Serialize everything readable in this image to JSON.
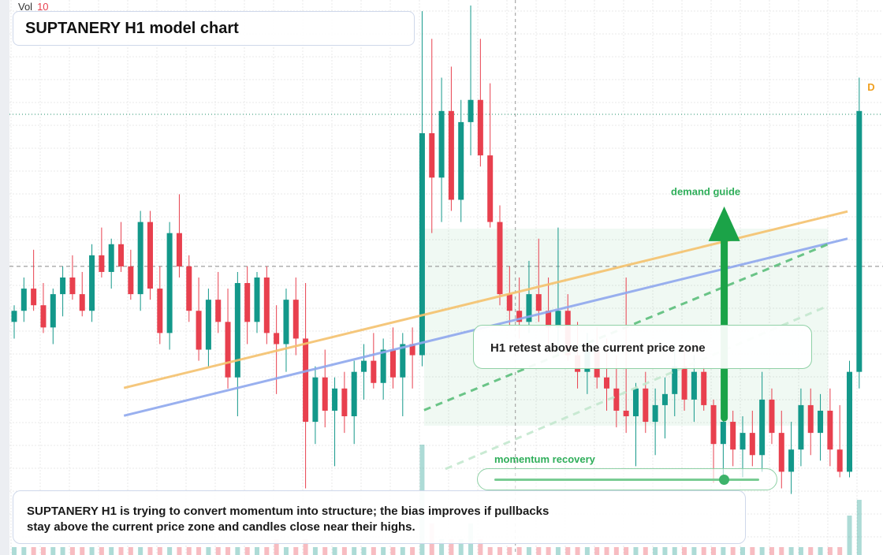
{
  "header": {
    "vol_label": "Vol",
    "vol_value": 10,
    "title": "SUPTANERY H1 model chart",
    "badge": "D"
  },
  "chart_data": {
    "type": "candlestick",
    "up_color": "#13988a",
    "down_color": "#e8404e",
    "ylim": [
      0,
      100
    ],
    "volume_ylim": [
      0,
      20
    ],
    "candles": [
      {
        "open": 42,
        "high": 45,
        "low": 39,
        "close": 44
      },
      {
        "open": 44,
        "high": 50,
        "low": 42,
        "close": 48
      },
      {
        "open": 48,
        "high": 55,
        "low": 44,
        "close": 45
      },
      {
        "open": 45,
        "high": 49,
        "low": 40,
        "close": 41
      },
      {
        "open": 41,
        "high": 48,
        "low": 38,
        "close": 47
      },
      {
        "open": 47,
        "high": 52,
        "low": 43,
        "close": 50
      },
      {
        "open": 50,
        "high": 54,
        "low": 46,
        "close": 47
      },
      {
        "open": 47,
        "high": 51,
        "low": 43,
        "close": 44
      },
      {
        "open": 44,
        "high": 56,
        "low": 42,
        "close": 54
      },
      {
        "open": 54,
        "high": 59,
        "low": 50,
        "close": 51
      },
      {
        "open": 51,
        "high": 57,
        "low": 48,
        "close": 56
      },
      {
        "open": 56,
        "high": 60,
        "low": 51,
        "close": 52
      },
      {
        "open": 52,
        "high": 55,
        "low": 46,
        "close": 47
      },
      {
        "open": 47,
        "high": 62,
        "low": 44,
        "close": 60
      },
      {
        "open": 60,
        "high": 62,
        "low": 46,
        "close": 48
      },
      {
        "open": 48,
        "high": 52,
        "low": 38,
        "close": 40
      },
      {
        "open": 40,
        "high": 60,
        "low": 37,
        "close": 58
      },
      {
        "open": 58,
        "high": 65,
        "low": 50,
        "close": 52
      },
      {
        "open": 52,
        "high": 54,
        "low": 42,
        "close": 44
      },
      {
        "open": 44,
        "high": 50,
        "low": 35,
        "close": 37
      },
      {
        "open": 37,
        "high": 48,
        "low": 34,
        "close": 46
      },
      {
        "open": 46,
        "high": 51,
        "low": 40,
        "close": 42
      },
      {
        "open": 42,
        "high": 48,
        "low": 30,
        "close": 32
      },
      {
        "open": 32,
        "high": 51,
        "low": 25,
        "close": 49
      },
      {
        "open": 49,
        "high": 52,
        "low": 38,
        "close": 42
      },
      {
        "open": 42,
        "high": 51,
        "low": 40,
        "close": 50
      },
      {
        "open": 50,
        "high": 52,
        "low": 38,
        "close": 40
      },
      {
        "open": 40,
        "high": 45,
        "low": 29,
        "close": 38
      },
      {
        "open": 38,
        "high": 48,
        "low": 33,
        "close": 46
      },
      {
        "open": 46,
        "high": 50,
        "low": 36,
        "close": 39
      },
      {
        "open": 39,
        "high": 49,
        "low": 12,
        "close": 24
      },
      {
        "open": 24,
        "high": 34,
        "low": 20,
        "close": 32
      },
      {
        "open": 32,
        "high": 37,
        "low": 23,
        "close": 26
      },
      {
        "open": 26,
        "high": 32,
        "low": 16,
        "close": 30
      },
      {
        "open": 30,
        "high": 33,
        "low": 22,
        "close": 25
      },
      {
        "open": 25,
        "high": 35,
        "low": 20,
        "close": 33
      },
      {
        "open": 33,
        "high": 38,
        "low": 28,
        "close": 35
      },
      {
        "open": 35,
        "high": 40,
        "low": 30,
        "close": 31
      },
      {
        "open": 31,
        "high": 39,
        "low": 28,
        "close": 37
      },
      {
        "open": 37,
        "high": 41,
        "low": 30,
        "close": 32
      },
      {
        "open": 32,
        "high": 40,
        "low": 25,
        "close": 38
      },
      {
        "open": 38,
        "high": 41,
        "low": 30,
        "close": 36
      },
      {
        "open": 36,
        "high": 98,
        "low": 34,
        "close": 76
      },
      {
        "open": 76,
        "high": 93,
        "low": 58,
        "close": 68
      },
      {
        "open": 68,
        "high": 86,
        "low": 60,
        "close": 80
      },
      {
        "open": 80,
        "high": 88,
        "low": 62,
        "close": 64
      },
      {
        "open": 64,
        "high": 82,
        "low": 60,
        "close": 78
      },
      {
        "open": 78,
        "high": 99,
        "low": 72,
        "close": 82
      },
      {
        "open": 82,
        "high": 93,
        "low": 70,
        "close": 72
      },
      {
        "open": 72,
        "high": 85,
        "low": 59,
        "close": 60
      },
      {
        "open": 60,
        "high": 63,
        "low": 45,
        "close": 47
      },
      {
        "open": 47,
        "high": 52,
        "low": 41,
        "close": 44
      },
      {
        "open": 44,
        "high": 50,
        "low": 39,
        "close": 42
      },
      {
        "open": 42,
        "high": 53,
        "low": 40,
        "close": 47
      },
      {
        "open": 47,
        "high": 57,
        "low": 42,
        "close": 44
      },
      {
        "open": 44,
        "high": 50,
        "low": 38,
        "close": 41
      },
      {
        "open": 41,
        "high": 59,
        "low": 36,
        "close": 44
      },
      {
        "open": 44,
        "high": 47,
        "low": 35,
        "close": 36
      },
      {
        "open": 36,
        "high": 42,
        "low": 30,
        "close": 33
      },
      {
        "open": 33,
        "high": 40,
        "low": 29,
        "close": 37
      },
      {
        "open": 37,
        "high": 41,
        "low": 30,
        "close": 32
      },
      {
        "open": 32,
        "high": 39,
        "low": 26,
        "close": 30
      },
      {
        "open": 30,
        "high": 36,
        "low": 23,
        "close": 26
      },
      {
        "open": 26,
        "high": 50,
        "low": 22,
        "close": 25
      },
      {
        "open": 25,
        "high": 31,
        "low": 16,
        "close": 30
      },
      {
        "open": 30,
        "high": 33,
        "low": 22,
        "close": 24
      },
      {
        "open": 24,
        "high": 30,
        "low": 18,
        "close": 27
      },
      {
        "open": 27,
        "high": 32,
        "low": 21,
        "close": 29
      },
      {
        "open": 29,
        "high": 38,
        "low": 25,
        "close": 34
      },
      {
        "open": 34,
        "high": 37,
        "low": 26,
        "close": 28
      },
      {
        "open": 28,
        "high": 36,
        "low": 24,
        "close": 33
      },
      {
        "open": 33,
        "high": 34,
        "low": 26,
        "close": 27
      },
      {
        "open": 27,
        "high": 28,
        "low": 13,
        "close": 20
      },
      {
        "open": 20,
        "high": 27,
        "low": 13,
        "close": 24
      },
      {
        "open": 24,
        "high": 26,
        "low": 16,
        "close": 19
      },
      {
        "open": 19,
        "high": 25,
        "low": 14,
        "close": 22
      },
      {
        "open": 22,
        "high": 26,
        "low": 16,
        "close": 18
      },
      {
        "open": 18,
        "high": 33,
        "low": 15,
        "close": 28
      },
      {
        "open": 28,
        "high": 30,
        "low": 20,
        "close": 22
      },
      {
        "open": 22,
        "high": 26,
        "low": 12,
        "close": 15
      },
      {
        "open": 15,
        "high": 24,
        "low": 11,
        "close": 19
      },
      {
        "open": 19,
        "high": 30,
        "low": 16,
        "close": 27
      },
      {
        "open": 27,
        "high": 30,
        "low": 18,
        "close": 22
      },
      {
        "open": 22,
        "high": 29,
        "low": 17,
        "close": 26
      },
      {
        "open": 26,
        "high": 30,
        "low": 16,
        "close": 19
      },
      {
        "open": 19,
        "high": 27,
        "low": 14,
        "close": 15
      },
      {
        "open": 15,
        "high": 35,
        "low": 14,
        "close": 33
      },
      {
        "open": 33,
        "high": 86,
        "low": 30,
        "close": 80
      }
    ],
    "volumes": [
      1,
      1,
      1,
      1,
      1,
      1,
      1,
      1,
      1,
      1,
      1,
      1,
      1,
      1,
      1,
      1,
      1,
      1,
      1,
      1,
      1,
      1,
      1,
      1,
      1,
      1,
      1,
      2,
      1,
      1,
      2,
      1,
      1,
      1,
      1,
      1,
      1,
      1,
      1,
      1,
      1,
      1,
      14,
      4,
      2,
      2,
      2,
      4,
      2,
      1,
      1,
      1,
      1,
      1,
      1,
      1,
      1,
      1,
      1,
      1,
      1,
      1,
      1,
      1,
      1,
      1,
      1,
      1,
      1,
      1,
      1,
      1,
      1,
      1,
      1,
      1,
      1,
      1,
      1,
      1,
      1,
      1,
      1,
      1,
      1,
      1,
      5,
      7
    ],
    "zone": {
      "from": 42.2,
      "to": 83.8,
      "low": 23.3,
      "high": 58.8,
      "color": "#2fae5a"
    },
    "levels": [
      {
        "value": 79.4,
        "color": "#1f8f6a",
        "style": "dotted"
      },
      {
        "value": 52.0,
        "color": "#888888",
        "style": "dashed"
      }
    ],
    "crosshair_x": 51.6,
    "trendlines": [
      {
        "color": "#f5c26e",
        "style": "solid",
        "points": [
          [
            11.3,
            30.1
          ],
          [
            85.8,
            61.9
          ]
        ]
      },
      {
        "color": "#8fa8ee",
        "style": "solid",
        "points": [
          [
            11.3,
            25.1
          ],
          [
            85.8,
            57.0
          ]
        ]
      },
      {
        "color": "#5cbf7c",
        "style": "dashed",
        "points": [
          [
            42.2,
            26.1
          ],
          [
            83.8,
            56.0
          ]
        ]
      },
      {
        "color": "#c4e8cf",
        "style": "dashed",
        "points": [
          [
            44.4,
            15.5
          ],
          [
            83.8,
            44.9
          ]
        ]
      }
    ],
    "arrow": {
      "x": 73.1,
      "from": 24.7,
      "to": 62.8,
      "color": "#1ba348",
      "label": "demand guide"
    }
  },
  "callout": "H1 retest above the current price zone",
  "slider_label": "momentum recovery",
  "note": [
    "SUPTANERY H1 is trying to convert momentum into structure; the bias improves if pullbacks",
    "stay above the current price zone and candles close near their highs."
  ]
}
